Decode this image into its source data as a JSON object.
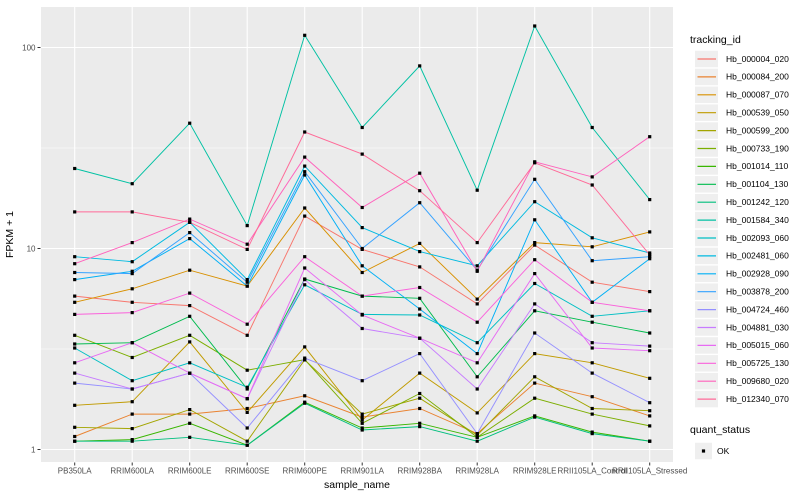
{
  "chart_data": {
    "type": "line",
    "title": "",
    "xlabel": "sample_name",
    "ylabel": "FPKM + 1",
    "y_scale": "log10",
    "ylim": [
      0.87,
      160
    ],
    "grid": true,
    "legend_position": "right",
    "legend_title": "tracking_id",
    "marker": "black-square",
    "y_ticks": [
      "100",
      "10",
      "1"
    ],
    "y_tick_values": [
      100,
      10,
      1
    ],
    "y_minor_values": [
      31.6228,
      3.16228
    ],
    "x_categories": [
      "PB350LA",
      "RRIM600LA",
      "RRIM600LE",
      "RRIM600SE",
      "RRIM600PE",
      "RRIM901LA",
      "RRIM928BA",
      "RRIM928LA",
      "RRIM928LE",
      "RRII105LA_Control",
      "RRII105LA_Stressed"
    ],
    "series": [
      {
        "name": "Hb_000004_020",
        "color": "#F8766D",
        "values": [
          5.8,
          5.4,
          5.2,
          3.7,
          14.5,
          9.9,
          8.1,
          5.3,
          10.4,
          6.8,
          6.1
        ]
      },
      {
        "name": "Hb_000084_200",
        "color": "#EA8331",
        "values": [
          1.16,
          1.5,
          1.5,
          1.6,
          1.85,
          1.45,
          1.6,
          1.2,
          2.14,
          1.83,
          1.47
        ]
      },
      {
        "name": "Hb_000087_070",
        "color": "#D89000",
        "values": [
          5.4,
          6.3,
          7.8,
          6.5,
          15.9,
          7.6,
          10.6,
          5.6,
          10.7,
          10.2,
          12.1
        ]
      },
      {
        "name": "Hb_000539_050",
        "color": "#C09B00",
        "values": [
          1.66,
          1.73,
          3.43,
          1.53,
          3.24,
          1.4,
          2.4,
          1.52,
          3.0,
          2.7,
          2.26
        ]
      },
      {
        "name": "Hb_000599_200",
        "color": "#A3A500",
        "values": [
          1.29,
          1.27,
          1.58,
          1.1,
          2.79,
          1.5,
          1.8,
          1.18,
          2.3,
          1.6,
          1.56
        ]
      },
      {
        "name": "Hb_000733_190",
        "color": "#7CAE00",
        "values": [
          3.7,
          2.87,
          3.7,
          2.48,
          2.8,
          1.35,
          1.9,
          1.15,
          1.8,
          1.5,
          1.31
        ]
      },
      {
        "name": "Hb_001014_110",
        "color": "#39B600",
        "values": [
          1.1,
          1.12,
          1.35,
          1.05,
          1.72,
          1.28,
          1.35,
          1.15,
          1.47,
          1.22,
          1.1
        ]
      },
      {
        "name": "Hb_001104_130",
        "color": "#00BB4E",
        "values": [
          3.35,
          3.4,
          4.6,
          2.0,
          7.05,
          5.8,
          5.65,
          2.3,
          4.9,
          4.3,
          3.8
        ]
      },
      {
        "name": "Hb_001242_120",
        "color": "#00BF7D",
        "values": [
          1.1,
          1.1,
          1.15,
          1.05,
          1.7,
          1.25,
          1.3,
          1.1,
          1.45,
          1.2,
          1.1
        ]
      },
      {
        "name": "Hb_001584_340",
        "color": "#00C1A3",
        "values": [
          25,
          21,
          42,
          13,
          115,
          40,
          81,
          19.5,
          128,
          40,
          17.5
        ]
      },
      {
        "name": "Hb_002093_060",
        "color": "#00BFC4",
        "values": [
          3.2,
          2.2,
          2.7,
          2.04,
          6.6,
          4.7,
          4.67,
          3.4,
          6.7,
          4.6,
          4.9
        ]
      },
      {
        "name": "Hb_002481_060",
        "color": "#00BAE0",
        "values": [
          9.1,
          8.6,
          13.5,
          7.0,
          25.7,
          12.7,
          9.65,
          8.2,
          17.1,
          11.3,
          9.5
        ]
      },
      {
        "name": "Hb_002928_090",
        "color": "#00B0F6",
        "values": [
          7.0,
          7.7,
          11.2,
          6.5,
          23.2,
          8.2,
          5.0,
          3.0,
          13.9,
          5.4,
          8.9
        ]
      },
      {
        "name": "Hb_003878_200",
        "color": "#35A2FF",
        "values": [
          7.6,
          7.5,
          12.0,
          6.8,
          24.1,
          10.0,
          16.9,
          7.8,
          22.1,
          8.7,
          9.1
        ]
      },
      {
        "name": "Hb_004724_460",
        "color": "#9590FF",
        "values": [
          2.14,
          2.0,
          2.4,
          1.28,
          2.85,
          2.2,
          3.0,
          1.2,
          3.8,
          2.4,
          1.71
        ]
      },
      {
        "name": "Hb_004881_030",
        "color": "#C77CFF",
        "values": [
          2.4,
          2.0,
          2.4,
          1.79,
          7.0,
          4.0,
          3.58,
          2.0,
          5.3,
          3.4,
          3.27
        ]
      },
      {
        "name": "Hb_005015_060",
        "color": "#E76BF3",
        "values": [
          2.7,
          3.4,
          2.4,
          1.79,
          8.0,
          4.67,
          3.58,
          2.7,
          7.5,
          3.2,
          3.1
        ]
      },
      {
        "name": "Hb_005725_130",
        "color": "#FA62DB",
        "values": [
          4.7,
          4.8,
          6.0,
          4.2,
          9.1,
          5.8,
          6.4,
          4.3,
          8.8,
          5.4,
          4.9
        ]
      },
      {
        "name": "Hb_009680_020",
        "color": "#FF62BC",
        "values": [
          8.4,
          10.7,
          14.0,
          10.5,
          28.5,
          16.0,
          23.7,
          7.7,
          27.0,
          22.7,
          36.0
        ]
      },
      {
        "name": "Hb_012340_070",
        "color": "#FF6A98",
        "values": [
          15.2,
          15.2,
          13.5,
          9.9,
          38.0,
          29.5,
          19.4,
          10.7,
          26.7,
          20.7,
          9.3
        ]
      }
    ],
    "quant_legend": {
      "title": "quant_status",
      "items": [
        {
          "label": "OK",
          "marker": "black-square"
        }
      ]
    },
    "colors": {
      "panel_background": "#EBEBEB",
      "gridline": "#FFFFFF",
      "tick_label": "#4D4D4D",
      "axis_title": "#000000",
      "marker": "#000000",
      "legend_key_background": "#EFEFEF"
    }
  }
}
